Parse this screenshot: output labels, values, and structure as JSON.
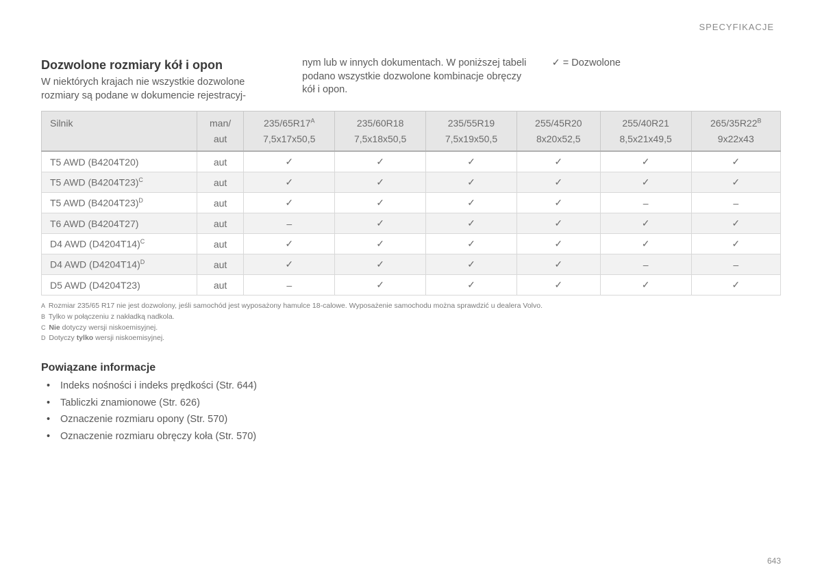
{
  "section_label": "SPECYFIKACJE",
  "title": "Dozwolone rozmiary kół i opon",
  "intro_left": "W niektórych krajach nie wszystkie dozwolone rozmiary są podane w dokumencie rejestracyj-",
  "intro_mid": "nym lub w innych dokumentach. W poniższej tabeli podano wszystkie dozwolone kombinacje obręczy kół i opon.",
  "legend": "✓ = Dozwolone",
  "table": {
    "header": {
      "engine": "Silnik",
      "trans_l1": "man/",
      "trans_l2": "aut",
      "cols": [
        {
          "l1": "235/65R17",
          "sup": "A",
          "l2": "7,5x17x50,5"
        },
        {
          "l1": "235/60R18",
          "sup": "",
          "l2": "7,5x18x50,5"
        },
        {
          "l1": "235/55R19",
          "sup": "",
          "l2": "7,5x19x50,5"
        },
        {
          "l1": "255/45R20",
          "sup": "",
          "l2": "8x20x52,5"
        },
        {
          "l1": "255/40R21",
          "sup": "",
          "l2": "8,5x21x49,5"
        },
        {
          "l1": "265/35R22",
          "sup": "B",
          "l2": "9x22x43"
        }
      ]
    },
    "rows": [
      {
        "engine": "T5 AWD (B4204T20)",
        "sup": "",
        "trans": "aut",
        "v": [
          "✓",
          "✓",
          "✓",
          "✓",
          "✓",
          "✓"
        ]
      },
      {
        "engine": "T5 AWD (B4204T23)",
        "sup": "C",
        "trans": "aut",
        "v": [
          "✓",
          "✓",
          "✓",
          "✓",
          "✓",
          "✓"
        ]
      },
      {
        "engine": "T5 AWD (B4204T23)",
        "sup": "D",
        "trans": "aut",
        "v": [
          "✓",
          "✓",
          "✓",
          "✓",
          "–",
          "–"
        ]
      },
      {
        "engine": "T6 AWD (B4204T27)",
        "sup": "",
        "trans": "aut",
        "v": [
          "–",
          "✓",
          "✓",
          "✓",
          "✓",
          "✓"
        ]
      },
      {
        "engine": "D4 AWD (D4204T14)",
        "sup": "C",
        "trans": "aut",
        "v": [
          "✓",
          "✓",
          "✓",
          "✓",
          "✓",
          "✓"
        ]
      },
      {
        "engine": "D4 AWD (D4204T14)",
        "sup": "D",
        "trans": "aut",
        "v": [
          "✓",
          "✓",
          "✓",
          "✓",
          "–",
          "–"
        ]
      },
      {
        "engine": "D5 AWD (D4204T23)",
        "sup": "",
        "trans": "aut",
        "v": [
          "–",
          "✓",
          "✓",
          "✓",
          "✓",
          "✓"
        ]
      }
    ]
  },
  "footnotes": [
    {
      "key": "A",
      "html": "Rozmiar 235/65 R17 nie jest dozwolony, jeśli samochód jest wyposażony hamulce 18-calowe. Wyposażenie samochodu można sprawdzić u dealera Volvo."
    },
    {
      "key": "B",
      "html": "Tylko w połączeniu z nakładką nadkola."
    },
    {
      "key": "C",
      "html": "<b>Nie</b> dotyczy wersji niskoemisyjnej."
    },
    {
      "key": "D",
      "html": "Dotyczy <b>tylko</b> wersji niskoemisyjnej."
    }
  ],
  "related": {
    "heading": "Powiązane informacje",
    "items": [
      "Indeks nośności i indeks prędkości (Str. 644)",
      "Tabliczki znamionowe (Str. 626)",
      "Oznaczenie rozmiaru opony (Str. 570)",
      "Oznaczenie rozmiaru obręczy koła (Str. 570)"
    ]
  },
  "page_number": "643"
}
